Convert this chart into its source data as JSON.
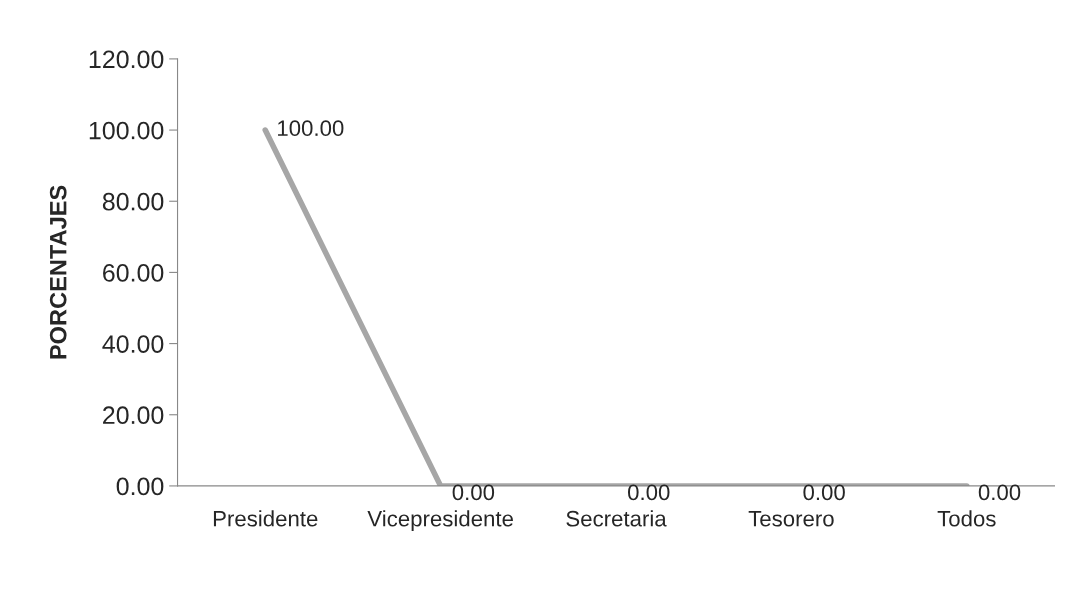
{
  "chart_data": {
    "type": "line",
    "ylabel": "PORCENTAJES",
    "categories": [
      "Presidente",
      "Vicepresidente",
      "Secretaria",
      "Tesorero",
      "Todos"
    ],
    "series": [
      {
        "color": "#a6a6a6",
        "values": [
          100,
          0,
          0,
          0,
          0
        ],
        "value_labels": [
          "100.00",
          "0.00",
          "0.00",
          "0.00",
          "0.00"
        ]
      }
    ],
    "ylim": [
      0,
      120
    ],
    "yticks": [
      {
        "value": 0,
        "label": "0.00"
      },
      {
        "value": 20,
        "label": "20.00"
      },
      {
        "value": 40,
        "label": "40.00"
      },
      {
        "value": 60,
        "label": "60.00"
      },
      {
        "value": 80,
        "label": "80.00"
      },
      {
        "value": 100,
        "label": "100.00"
      },
      {
        "value": 120,
        "label": "120.00"
      }
    ],
    "grid": false,
    "legend": false,
    "marker": "none",
    "line_style": "solid"
  }
}
